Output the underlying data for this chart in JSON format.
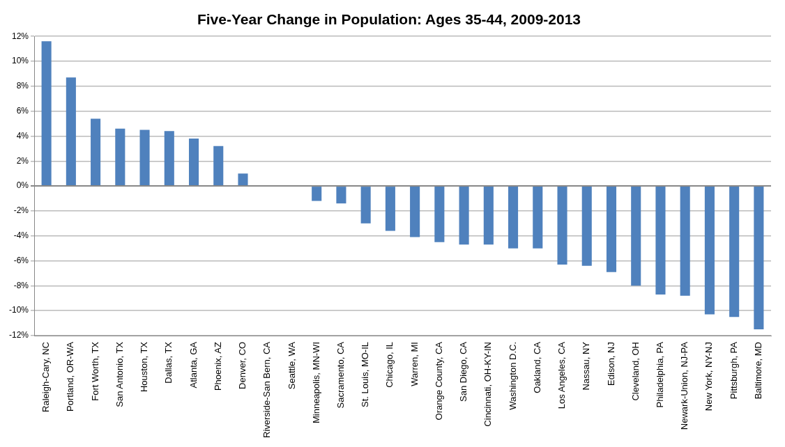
{
  "chart_data": {
    "type": "bar",
    "title": "Five-Year Change in Population: Ages 35-44, 2009-2013",
    "categories": [
      "Raleigh-Cary, NC",
      "Portland, OR-WA",
      "Fort Worth, TX",
      "San Antonio, TX",
      "Houston, TX",
      "Dallas, TX",
      "Atlanta, GA",
      "Phoenix, AZ",
      "Denver, CO",
      "Riverside-San Bern, CA",
      "Seattle, WA",
      "Minneapolis, MN-WI",
      "Sacramento, CA",
      "St. Louis, MO-IL",
      "Chicago, IL",
      "Warren, MI",
      "Orange County, CA",
      "San Diego, CA",
      "Cincinnati, OH-KY-IN",
      "Washington D.C.",
      "Oakland, CA",
      "Los Angeles, CA",
      "Nassau, NY",
      "Edison, NJ",
      "Cleveland, OH",
      "Philadelphia, PA",
      "Newark-Union, NJ-PA",
      "New York, NY-NJ",
      "Pittsburgh, PA",
      "Baltimore, MD"
    ],
    "values": [
      11.6,
      8.7,
      5.4,
      4.6,
      4.5,
      4.4,
      3.8,
      3.2,
      1.0,
      0,
      0,
      -1.2,
      -1.4,
      -3.0,
      -3.6,
      -4.1,
      -4.5,
      -4.7,
      -4.7,
      -5.0,
      -5.0,
      -6.3,
      -6.4,
      -6.9,
      -8.0,
      -8.7,
      -8.8,
      -10.3,
      -10.5,
      -11.5
    ],
    "color": "#4f81bd",
    "ylim": [
      -12,
      12
    ],
    "yticks": [
      {
        "value": -12,
        "label": "-12%"
      },
      {
        "value": -10,
        "label": "-10%"
      },
      {
        "value": -8,
        "label": "-8%"
      },
      {
        "value": -6,
        "label": "-6%"
      },
      {
        "value": -4,
        "label": "-4%"
      },
      {
        "value": -2,
        "label": "-2%"
      },
      {
        "value": 0,
        "label": "0%"
      },
      {
        "value": 2,
        "label": "2%"
      },
      {
        "value": 4,
        "label": "4%"
      },
      {
        "value": 6,
        "label": "6%"
      },
      {
        "value": 8,
        "label": "8%"
      },
      {
        "value": 10,
        "label": "10%"
      },
      {
        "value": 12,
        "label": "12%"
      }
    ],
    "grid": "y"
  }
}
